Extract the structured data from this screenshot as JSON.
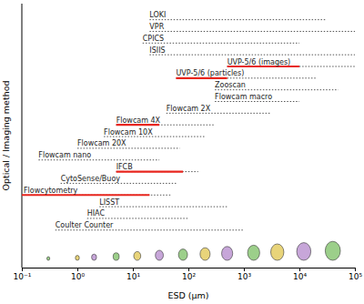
{
  "chart_data": {
    "type": "range",
    "orientation": "horizontal",
    "log": "x",
    "x_label": "ESD (µm)",
    "y_label": "Optical / Imaging method",
    "xlim": [
      0.1,
      100000
    ],
    "xticks": [
      {
        "value": 0.1,
        "label": "10⁻¹"
      },
      {
        "value": 1,
        "label": "10⁰"
      },
      {
        "value": 10,
        "label": "10¹"
      },
      {
        "value": 100,
        "label": "10²"
      },
      {
        "value": 1000,
        "label": "10³"
      },
      {
        "value": 10000,
        "label": "10⁴"
      },
      {
        "value": 100000,
        "label": "10⁵"
      }
    ],
    "categories": [
      "LOKI",
      "VPR",
      "CPICS",
      "ISIIS",
      "UVP-5/6 (images)",
      "UVP-5/6 (particles)",
      "Zooscan",
      "Flowcam macro",
      "Flowcam 2X",
      "Flowcam 4X",
      "Flowcam 10X",
      "Flowcam 20X",
      "Flowcam nano",
      "IFCB",
      "CytoSense/Buoy",
      "Flowcytometry",
      "LISST",
      "HIAC",
      "Coulter Counter"
    ],
    "series": [
      {
        "color": "#555555",
        "line_style": "dotted",
        "values": [
          [
            20,
            30000
          ],
          [
            20,
            100000
          ],
          [
            15,
            10000
          ],
          [
            20,
            100000
          ],
          [
            500,
            100000
          ],
          [
            60,
            20000
          ],
          [
            300,
            50000
          ],
          [
            300,
            10000
          ],
          [
            40,
            3000
          ],
          [
            5,
            300
          ],
          [
            3,
            200
          ],
          [
            1,
            70
          ],
          [
            0.2,
            30
          ],
          [
            5,
            150
          ],
          [
            0.5,
            60
          ],
          [
            0.1,
            50
          ],
          [
            2.5,
            500
          ],
          [
            1.5,
            100
          ],
          [
            0.4,
            1000
          ]
        ]
      },
      {
        "color": "#e8261e",
        "line_style": "solid",
        "values": [
          null,
          null,
          null,
          null,
          [
            500,
            10000
          ],
          [
            60,
            500
          ],
          null,
          null,
          null,
          [
            5,
            30
          ],
          null,
          null,
          null,
          [
            5,
            80
          ],
          null,
          [
            0.1,
            20
          ],
          null,
          null,
          null
        ]
      }
    ]
  }
}
